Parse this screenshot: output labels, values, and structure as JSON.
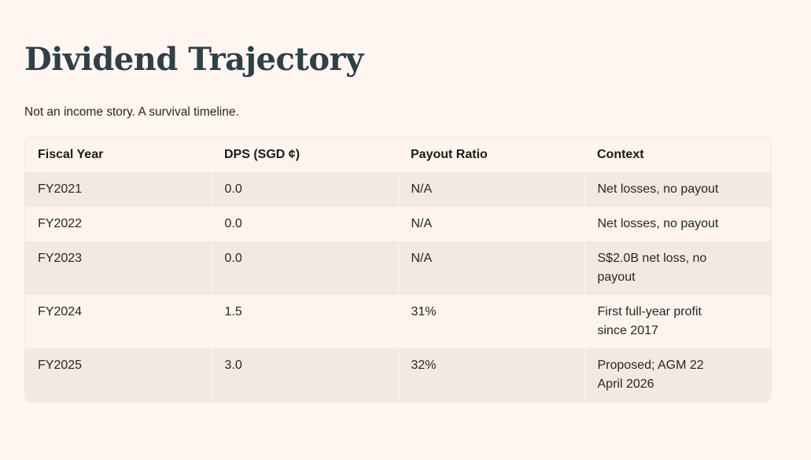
{
  "page": {
    "title": "Dividend Trajectory",
    "subtitle": "Not an income story. A survival timeline."
  },
  "table": {
    "columns": [
      "Fiscal Year",
      "DPS (SGD ¢)",
      "Payout Ratio",
      "Context"
    ],
    "rows": [
      {
        "fiscal_year": "FY2021",
        "dps": "0.0",
        "payout_ratio": "N/A",
        "context": "Net losses, no payout"
      },
      {
        "fiscal_year": "FY2022",
        "dps": "0.0",
        "payout_ratio": "N/A",
        "context": "Net losses, no payout"
      },
      {
        "fiscal_year": "FY2023",
        "dps": "0.0",
        "payout_ratio": "N/A",
        "context": "S$2.0B net loss, no payout"
      },
      {
        "fiscal_year": "FY2024",
        "dps": "1.5",
        "payout_ratio": "31%",
        "context": "First full-year profit since 2017"
      },
      {
        "fiscal_year": "FY2025",
        "dps": "3.0",
        "payout_ratio": "32%",
        "context": "Proposed; AGM 22 April 2026"
      }
    ],
    "row_order": [
      "fiscal_year",
      "dps",
      "payout_ratio",
      "context"
    ]
  },
  "colors": {
    "background": "#FFF6F1",
    "card": "#FDF4EE",
    "stripe": "#F4E9E1",
    "card_border": "#F1E7DF",
    "separator": "#FDF6F0",
    "title": "#2E4049",
    "text": "#262626",
    "header_text": "#1B1B1B"
  }
}
